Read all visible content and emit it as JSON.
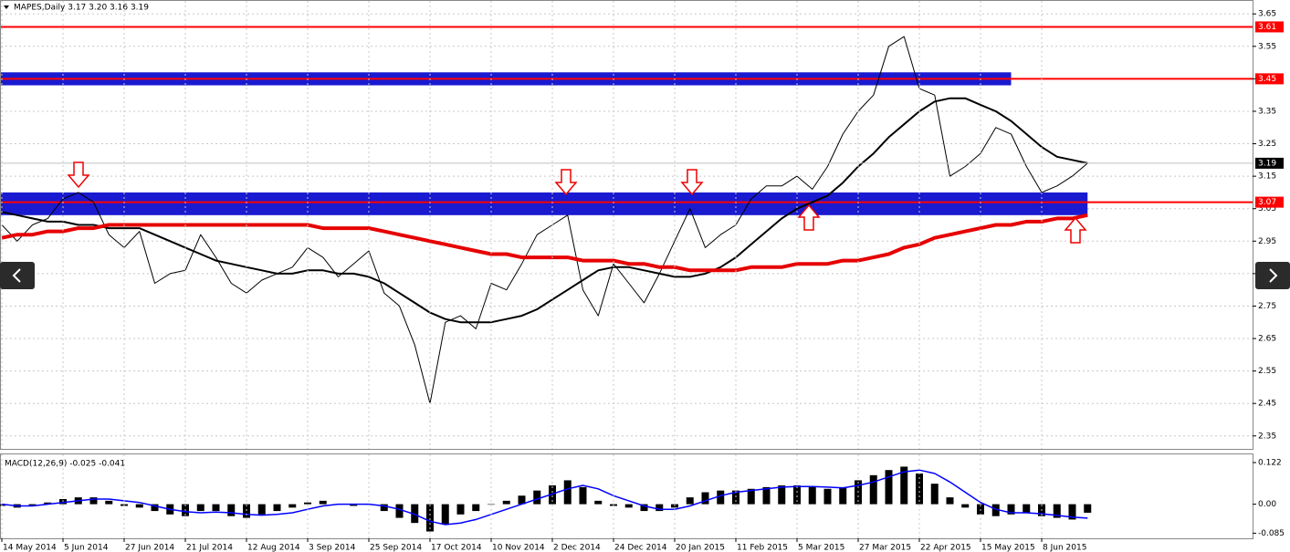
{
  "chart_data": [
    {
      "type": "line",
      "title": "MAPES,Daily  3.17 3.20 3.16 3.19",
      "ylim": [
        2.31,
        3.69
      ],
      "yticks": [
        3.65,
        3.55,
        3.45,
        3.35,
        3.25,
        3.15,
        3.05,
        2.95,
        2.85,
        2.75,
        2.65,
        2.55,
        2.45,
        2.35
      ],
      "grid": true,
      "zones": [
        {
          "from": 3.43,
          "to": 3.47,
          "x_end": 66,
          "color": "#1a1ad0"
        },
        {
          "from": 3.03,
          "to": 3.1,
          "x_end": 71,
          "color": "#1a1ad0"
        }
      ],
      "levels": [
        {
          "value": 3.61,
          "color": "#ff0000"
        },
        {
          "value": 3.45,
          "color": "#ff0000"
        },
        {
          "value": 3.07,
          "color": "#ff0000"
        }
      ],
      "series": [
        {
          "color": "#000000",
          "values": [
            3.0,
            2.95,
            3.0,
            3.02,
            3.08,
            3.1,
            3.07,
            2.97,
            2.93,
            2.98,
            2.82,
            2.85,
            2.86,
            2.97,
            2.9,
            2.82,
            2.79,
            2.83,
            2.85,
            2.87,
            2.93,
            2.9,
            2.84,
            2.88,
            2.92,
            2.79,
            2.75,
            2.63,
            2.45,
            2.7,
            2.72,
            2.68,
            2.82,
            2.8,
            2.88,
            2.97,
            3.0,
            3.03,
            2.8,
            2.72,
            2.88,
            2.82,
            2.76,
            2.85,
            2.95,
            3.05,
            2.93,
            2.97,
            3.0,
            3.08,
            3.12,
            3.12,
            3.15,
            3.11,
            3.18,
            3.28,
            3.35,
            3.4,
            3.55,
            3.58,
            3.42,
            3.4,
            3.15,
            3.18,
            3.22,
            3.3,
            3.28,
            3.18,
            3.1,
            3.12,
            3.15,
            3.19
          ]
        },
        {
          "color": "#000000",
          "values": [
            3.04,
            3.03,
            3.02,
            3.01,
            3.01,
            3.0,
            3.0,
            2.99,
            2.99,
            2.99,
            2.97,
            2.95,
            2.93,
            2.91,
            2.89,
            2.88,
            2.87,
            2.86,
            2.85,
            2.85,
            2.86,
            2.86,
            2.85,
            2.85,
            2.84,
            2.82,
            2.79,
            2.76,
            2.73,
            2.71,
            2.7,
            2.7,
            2.7,
            2.71,
            2.72,
            2.74,
            2.77,
            2.8,
            2.83,
            2.86,
            2.87,
            2.87,
            2.86,
            2.85,
            2.84,
            2.84,
            2.85,
            2.87,
            2.9,
            2.94,
            2.98,
            3.02,
            3.05,
            3.07,
            3.09,
            3.13,
            3.18,
            3.22,
            3.27,
            3.31,
            3.35,
            3.38,
            3.39,
            3.39,
            3.37,
            3.35,
            3.32,
            3.28,
            3.24,
            3.21,
            3.2,
            3.19
          ]
        },
        {
          "color": "#e60000",
          "values": [
            2.96,
            2.97,
            2.97,
            2.98,
            2.98,
            2.99,
            2.99,
            3.0,
            3.0,
            3.0,
            3.0,
            3.0,
            3.0,
            3.0,
            3.0,
            3.0,
            3.0,
            3.0,
            3.0,
            3.0,
            3.0,
            2.99,
            2.99,
            2.99,
            2.99,
            2.98,
            2.97,
            2.96,
            2.95,
            2.94,
            2.93,
            2.92,
            2.91,
            2.91,
            2.9,
            2.9,
            2.9,
            2.9,
            2.89,
            2.89,
            2.89,
            2.88,
            2.88,
            2.87,
            2.87,
            2.86,
            2.86,
            2.86,
            2.86,
            2.87,
            2.87,
            2.87,
            2.88,
            2.88,
            2.88,
            2.89,
            2.89,
            2.9,
            2.91,
            2.93,
            2.94,
            2.96,
            2.97,
            2.98,
            2.99,
            3.0,
            3.0,
            3.01,
            3.01,
            3.02,
            3.02,
            3.03
          ]
        }
      ]
    },
    {
      "type": "combo",
      "title": "MACD(12,26,9) -0.025 -0.041",
      "ylim": [
        -0.1,
        0.146
      ],
      "yticks": [
        0.122,
        {
          "value": 0,
          "label": "0.00"
        },
        -0.085
      ],
      "categories": [
        "14 May 2014",
        null,
        null,
        null,
        "5 Jun 2014",
        null,
        null,
        null,
        "27 Jun 2014",
        null,
        null,
        null,
        "21 Jul 2014",
        null,
        null,
        null,
        "12 Aug 2014",
        null,
        null,
        null,
        "3 Sep 2014",
        null,
        null,
        null,
        "25 Sep 2014",
        null,
        null,
        null,
        "17 Oct 2014",
        null,
        null,
        null,
        "10 Nov 2014",
        null,
        null,
        null,
        "2 Dec 2014",
        null,
        null,
        null,
        "24 Dec 2014",
        null,
        null,
        null,
        "20 Jan 2015",
        null,
        null,
        null,
        "11 Feb 2015",
        null,
        null,
        null,
        "5 Mar 2015",
        null,
        null,
        null,
        "27 Mar 2015",
        null,
        null,
        null,
        "22 Apr 2015",
        null,
        null,
        null,
        "15 May 2015",
        null,
        null,
        null,
        "8 Jun 2015",
        null,
        null,
        null
      ],
      "series": [
        {
          "type": "bar",
          "color": "#000000",
          "values": [
            -0.005,
            -0.01,
            -0.005,
            0.005,
            0.015,
            0.02,
            0.02,
            0.01,
            -0.005,
            -0.01,
            -0.02,
            -0.03,
            -0.035,
            -0.02,
            -0.02,
            -0.035,
            -0.04,
            -0.03,
            -0.02,
            -0.01,
            0.005,
            0.01,
            0,
            -0.005,
            0,
            -0.02,
            -0.04,
            -0.055,
            -0.08,
            -0.06,
            -0.03,
            -0.02,
            0,
            0.01,
            0.025,
            0.04,
            0.055,
            0.07,
            0.05,
            0.01,
            -0.005,
            -0.01,
            -0.02,
            -0.02,
            -0.01,
            0.02,
            0.035,
            0.04,
            0.04,
            0.045,
            0.05,
            0.055,
            0.055,
            0.05,
            0.045,
            0.05,
            0.07,
            0.085,
            0.1,
            0.11,
            0.09,
            0.06,
            0.02,
            -0.01,
            -0.03,
            -0.035,
            -0.03,
            -0.025,
            -0.035,
            -0.04,
            -0.045,
            -0.025
          ]
        },
        {
          "type": "line",
          "color": "#0000ff",
          "values": [
            0,
            -0.005,
            -0.005,
            0,
            0.005,
            0.01,
            0.015,
            0.015,
            0.01,
            0.005,
            -0.005,
            -0.015,
            -0.022,
            -0.025,
            -0.023,
            -0.025,
            -0.03,
            -0.032,
            -0.03,
            -0.025,
            -0.015,
            -0.005,
            0,
            0,
            0,
            -0.005,
            -0.015,
            -0.03,
            -0.05,
            -0.06,
            -0.055,
            -0.045,
            -0.03,
            -0.015,
            0,
            0.015,
            0.03,
            0.045,
            0.055,
            0.045,
            0.025,
            0.01,
            -0.005,
            -0.015,
            -0.015,
            -0.005,
            0.01,
            0.025,
            0.035,
            0.04,
            0.045,
            0.05,
            0.052,
            0.052,
            0.05,
            0.048,
            0.055,
            0.065,
            0.08,
            0.095,
            0.1,
            0.09,
            0.065,
            0.035,
            0.005,
            -0.015,
            -0.025,
            -0.025,
            -0.028,
            -0.033,
            -0.038,
            -0.041
          ]
        }
      ]
    }
  ]
}
